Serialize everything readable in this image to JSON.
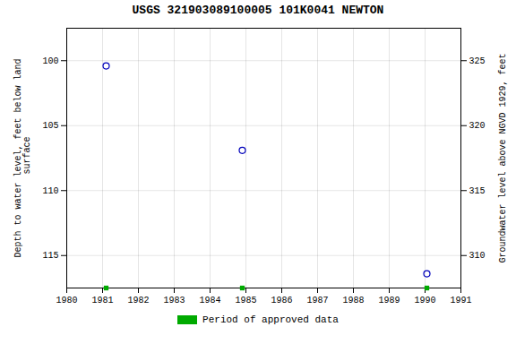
{
  "chart_data": {
    "type": "scatter",
    "title": "USGS 321903089100005 101K0041  NEWTON",
    "ylabel": "Depth to water level, feet below land\n surface",
    "y2label": "Groundwater level above NGVD 1929, feet",
    "x": [
      1981.1,
      1984.9,
      1990.05
    ],
    "series": [
      {
        "values": [
          100.4,
          106.9,
          116.4
        ],
        "color": "#0000bb",
        "marker": "open circle"
      },
      {
        "name": "Period of approved data",
        "type": "marker",
        "x": [
          1981.1,
          1984.9,
          1990.05
        ],
        "color": "#00aa00",
        "marker": "square"
      }
    ],
    "xlim": [
      1980,
      1991
    ],
    "xticks": [
      1980,
      1981,
      1982,
      1983,
      1984,
      1985,
      1986,
      1987,
      1988,
      1989,
      1990,
      1991
    ],
    "ylim": [
      117.5,
      97.5
    ],
    "yticks": [
      100,
      105,
      110,
      115
    ],
    "y2lim": [
      307.5,
      327.5
    ],
    "y2ticks": [
      325,
      320,
      315,
      310
    ],
    "grid": true,
    "legend": "bottom"
  }
}
